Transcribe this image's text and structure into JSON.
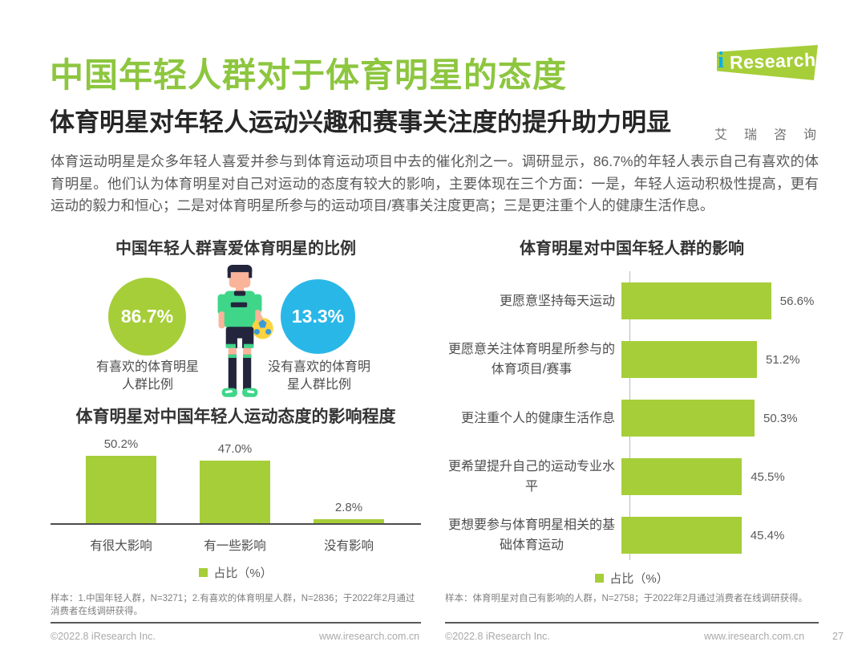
{
  "page": {
    "title": "中国年轻人群对于体育明星的态度",
    "subtitle": "体育明星对年轻人运动兴趣和赛事关注度的提升助力明显",
    "intro": "体育运动明星是众多年轻人喜爱并参与到体育运动项目中去的催化剂之一。调研显示，86.7%的年轻人表示自己有喜欢的体育明星。他们认为体育明星对自己对运动的态度有较大的影响，主要体现在三个方面：一是，年轻人运动积极性提高，更有运动的毅力和恒心；二是对体育明星所参与的运动项目/赛事关注度更高；三是更注重个人的健康生活作息。"
  },
  "logo": {
    "brand_i": "i",
    "brand": "Research",
    "brand_cn": "艾瑞咨询"
  },
  "colors": {
    "title_green": "#8dc63f",
    "chart_green": "#a6ce39",
    "circle_blue": "#29b7e8",
    "logo_teal": "#00b0e8",
    "body_text": "#595959",
    "note_text": "#7f7f7f",
    "footer_text": "#a9a9a9"
  },
  "chart_data": [
    {
      "type": "pie",
      "title": "中国年轻人群喜爱体育明星的比例",
      "slices": [
        {
          "label": "有喜欢的体育明星人群比例",
          "value": 86.7,
          "value_label": "86.7%",
          "color": "#a6ce39"
        },
        {
          "label": "没有喜欢的体育明星人群比例",
          "value": 13.3,
          "value_label": "13.3%",
          "color": "#29b7e8"
        }
      ],
      "center_icon": "soccer-player"
    },
    {
      "type": "bar",
      "orientation": "vertical",
      "title": "体育明星对中国年轻人运动态度的影响程度",
      "categories": [
        "有很大影响",
        "有一些影响",
        "没有影响"
      ],
      "values": [
        50.2,
        47.0,
        2.8
      ],
      "value_labels": [
        "50.2%",
        "47.0%",
        "2.8%"
      ],
      "legend": "占比（%）",
      "ylim": [
        0,
        60
      ],
      "bar_color": "#a6ce39",
      "grid": false
    },
    {
      "type": "bar",
      "orientation": "horizontal",
      "title": "体育明星对中国年轻人群的影响",
      "categories": [
        "更愿意坚持每天运动",
        "更愿意关注体育明星所参与的体育项目/赛事",
        "更注重个人的健康生活作息",
        "更希望提升自己的运动专业水平",
        "更想要参与体育明星相关的基础体育运动"
      ],
      "values": [
        56.6,
        51.2,
        50.3,
        45.5,
        45.4
      ],
      "value_labels": [
        "56.6%",
        "51.2%",
        "50.3%",
        "45.5%",
        "45.4%"
      ],
      "legend": "占比（%）",
      "xlim": [
        0,
        60
      ],
      "bar_color": "#a6ce39",
      "grid": false
    }
  ],
  "notes": {
    "left": "样本：1.中国年轻人群，N=3271；2.有喜欢的体育明星人群，N=2836；于2022年2月通过消费者在线调研获得。",
    "right": "样本：体育明星对自己有影响的人群，N=2758；于2022年2月通过消费者在线调研获得。"
  },
  "footer": {
    "copyright": "©2022.8 iResearch Inc.",
    "site": "www.iresearch.com.cn",
    "page_number": "27"
  }
}
